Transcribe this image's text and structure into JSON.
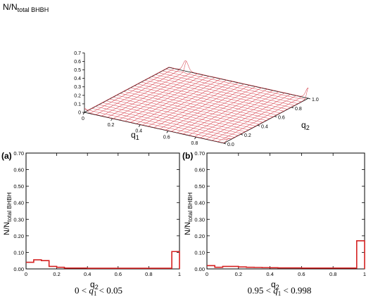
{
  "chart_data": [
    {
      "type": "surface3d",
      "zlabel": {
        "main": "N/N",
        "sub": "total BHBH"
      },
      "xlabel": {
        "main": "q",
        "sub": "1"
      },
      "ylabel": {
        "main": "q",
        "sub": "2"
      },
      "zticks": [
        "0",
        "0.1",
        "0.2",
        "0.3",
        "0.4",
        "0.5",
        "0.6",
        "0.7"
      ],
      "xticks": [
        "0",
        "0.2",
        "0.4",
        "0.6",
        "0.8"
      ],
      "yticks": [
        "0.0",
        "0.2",
        "0.4",
        "0.6",
        "0.8",
        "1.0"
      ],
      "zlim": [
        0,
        0.7
      ],
      "color": "#d84a55",
      "peaks": [
        {
          "q1": 0.0,
          "q2": 0.0,
          "value": 0.04
        },
        {
          "q1": 1.0,
          "q2": 0.05,
          "value": 0.02
        },
        {
          "q1": 0.12,
          "q2": 1.0,
          "value": 0.12
        },
        {
          "q1": 1.0,
          "q2": 1.0,
          "value": 0.12
        }
      ]
    },
    {
      "type": "histogram",
      "panel": "(a)",
      "xlabel": {
        "main": "q",
        "sub": "2"
      },
      "ylabel": {
        "main": "N/N",
        "sub": "total BHBH"
      },
      "xticks": [
        "0",
        "0.2",
        "0.4",
        "0.6",
        "0.8",
        "1"
      ],
      "yticks": [
        "0.00",
        "0.10",
        "0.20",
        "0.30",
        "0.40",
        "0.50",
        "0.60",
        "0.70"
      ],
      "xlim": [
        0,
        1
      ],
      "ylim": [
        0,
        0.7
      ],
      "bin_edges": [
        0,
        0.05,
        0.1,
        0.15,
        0.2,
        0.25,
        0.3,
        0.35,
        0.4,
        0.45,
        0.5,
        0.55,
        0.6,
        0.65,
        0.7,
        0.75,
        0.8,
        0.85,
        0.9,
        0.95,
        1.0
      ],
      "values": [
        0.04,
        0.055,
        0.05,
        0.015,
        0.01,
        0.005,
        0.005,
        0.005,
        0.004,
        0.004,
        0.004,
        0.004,
        0.004,
        0.004,
        0.004,
        0.004,
        0.004,
        0.004,
        0.004,
        0.105
      ],
      "color": "#d42020",
      "caption": {
        "pre": "0 < ",
        "var": "q",
        "sub": "1",
        "post": " < 0.05"
      }
    },
    {
      "type": "histogram",
      "panel": "(b)",
      "xlabel": {
        "main": "q",
        "sub": "2"
      },
      "ylabel": {
        "main": "N/N",
        "sub": "total BHBH"
      },
      "xticks": [
        "0",
        "0.2",
        "0.4",
        "0.6",
        "0.8",
        "1"
      ],
      "yticks": [
        "0.00",
        "0.10",
        "0.20",
        "0.30",
        "0.40",
        "0.50",
        "0.60",
        "0.70"
      ],
      "xlim": [
        0,
        1
      ],
      "ylim": [
        0,
        0.7
      ],
      "bin_edges": [
        0,
        0.05,
        0.1,
        0.15,
        0.2,
        0.25,
        0.3,
        0.35,
        0.4,
        0.45,
        0.5,
        0.55,
        0.6,
        0.65,
        0.7,
        0.75,
        0.8,
        0.85,
        0.9,
        0.95,
        1.0
      ],
      "values": [
        0.02,
        0.01,
        0.015,
        0.015,
        0.012,
        0.01,
        0.009,
        0.008,
        0.007,
        0.006,
        0.006,
        0.006,
        0.005,
        0.005,
        0.005,
        0.005,
        0.005,
        0.005,
        0.005,
        0.17
      ],
      "color": "#d42020",
      "caption": {
        "pre": "0.95 < ",
        "var": "q",
        "sub": "1",
        "post": " < 0.998"
      }
    }
  ]
}
